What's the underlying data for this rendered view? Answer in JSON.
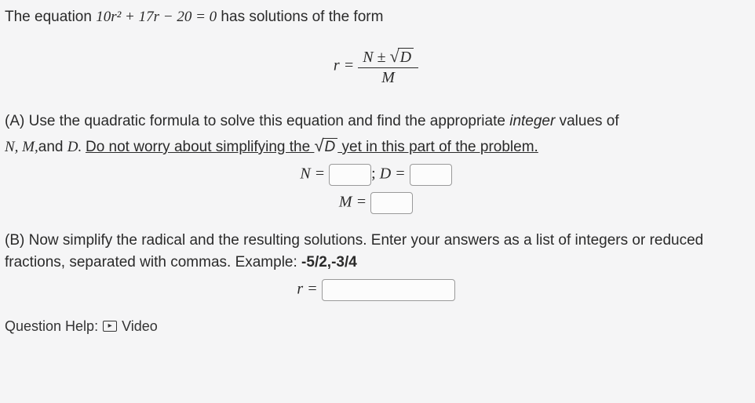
{
  "intro_prefix": "The equation ",
  "equation_inline": "10r² + 17r − 20 = 0",
  "intro_suffix": " has solutions of the form",
  "formula": {
    "lhs": "r =",
    "numerator": "N ± ",
    "radicand": "D",
    "denominator": "M"
  },
  "partA": {
    "label": "(A) ",
    "text1": "Use the quadratic formula to solve this equation and find the appropriate ",
    "emph": "integer",
    "text2": " values of ",
    "vars": "N, M,",
    "text3": "and ",
    "varD": "D. ",
    "under1": "Do not worry about simplifying the ",
    "underRad": "D",
    "under2": " yet in this part of the problem.",
    "N_eq": "N =",
    "D_eq": "D =",
    "M_eq": "M =",
    "sep": ";"
  },
  "partB": {
    "label": "(B) ",
    "text": "Now simplify the radical and the resulting solutions. Enter your answers as a list of integers or reduced fractions, separated with commas. Example: ",
    "example": "-5/2,-3/4",
    "r_eq": "r ="
  },
  "help": {
    "label": "Question Help:",
    "video": "Video"
  },
  "style": {
    "bg": "#f5f5f6",
    "text_color": "#2a2a2a",
    "box_border": "#9a9a9a",
    "body_fontsize": 19,
    "math_fontsize": 20
  }
}
